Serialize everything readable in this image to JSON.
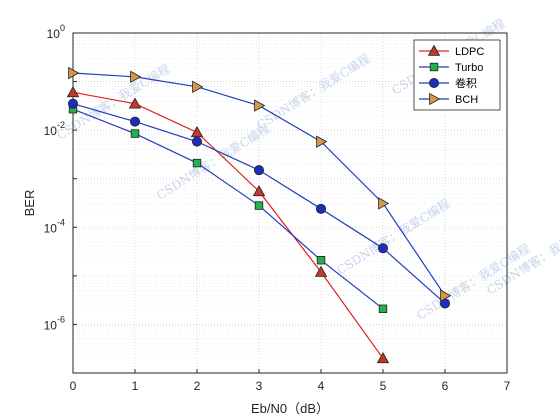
{
  "chart_data": {
    "type": "line",
    "title": "",
    "xlabel": "Eb/N0（dB）",
    "ylabel": "BER",
    "yscale": "log",
    "xlim": [
      0,
      7
    ],
    "ylim": [
      1e-07,
      1
    ],
    "grid": true,
    "minor_grid": true,
    "legend_position": "top-right",
    "x_ticks": [
      "0",
      "1",
      "2",
      "3",
      "4",
      "5",
      "6",
      "7"
    ],
    "y_ticks": [
      {
        "base": "10",
        "exp": "0",
        "value": 1
      },
      {
        "base": "10",
        "exp": "-2",
        "value": 0.01
      },
      {
        "base": "10",
        "exp": "-4",
        "value": 0.0001
      },
      {
        "base": "10",
        "exp": "-6",
        "value": 1e-06
      }
    ],
    "series": [
      {
        "name": "LDPC",
        "color": "#e02020",
        "marker": "triangle-up",
        "marker_fill": "#c0392b",
        "x": [
          0,
          1,
          2,
          3,
          4,
          5
        ],
        "y": [
          0.06,
          0.035,
          0.009,
          0.00055,
          1.2e-05,
          2e-07
        ]
      },
      {
        "name": "Turbo",
        "color": "#1f3fbf",
        "marker": "square",
        "marker_fill": "#22b14c",
        "x": [
          0,
          1,
          2,
          3,
          4,
          5
        ],
        "y": [
          0.027,
          0.0085,
          0.0021,
          0.00028,
          2.1e-05,
          2.1e-06
        ]
      },
      {
        "name": "卷积",
        "color": "#1f3fbf",
        "marker": "circle",
        "marker_fill": "#1a2fbf",
        "x": [
          0,
          1,
          2,
          3,
          4,
          5,
          6
        ],
        "y": [
          0.035,
          0.015,
          0.0058,
          0.0015,
          0.00024,
          3.7e-05,
          2.7e-06
        ]
      },
      {
        "name": "BCH",
        "color": "#1f3fbf",
        "marker": "triangle-right",
        "marker_fill": "#d9964b",
        "x": [
          0,
          1,
          2,
          3,
          4,
          5,
          6
        ],
        "y": [
          0.15,
          0.125,
          0.078,
          0.032,
          0.0058,
          0.00031,
          3.9e-06
        ]
      }
    ]
  },
  "watermark_text": "CSDN博客：我爱C编程"
}
